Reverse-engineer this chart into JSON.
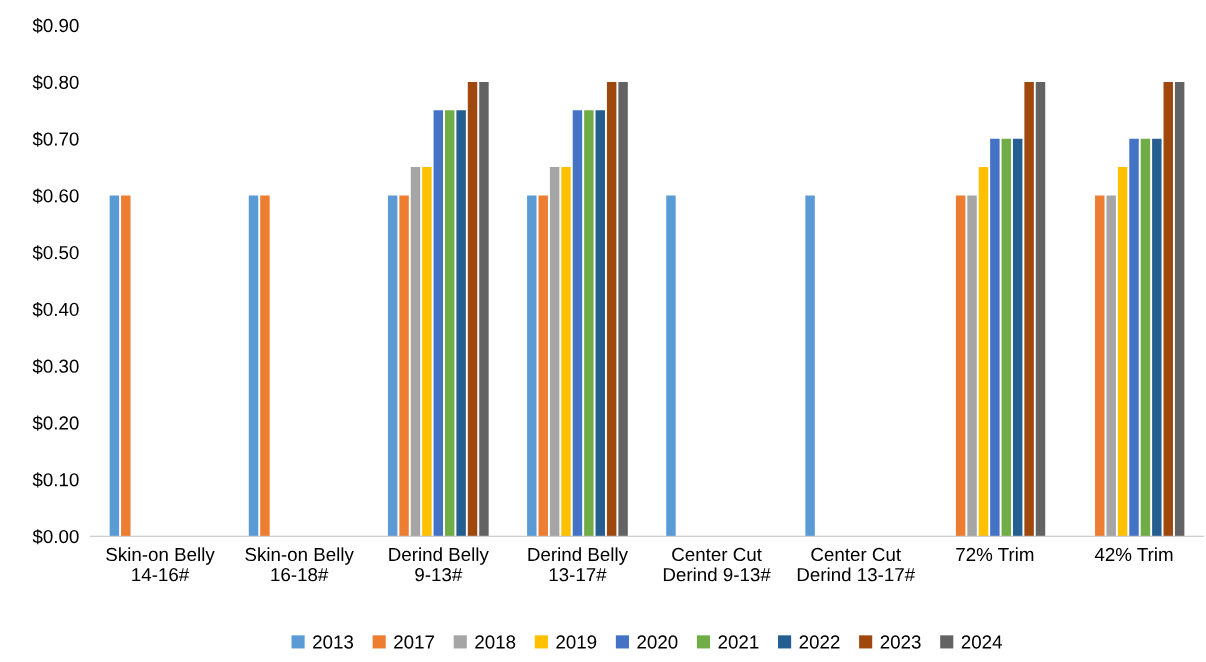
{
  "chart_data": {
    "type": "bar",
    "categories": [
      "Skin-on Belly\n14-16#",
      "Skin-on Belly\n16-18#",
      "Derind Belly\n9-13#",
      "Derind Belly\n13-17#",
      "Center Cut\nDerind 9-13#",
      "Center Cut\nDerind 13-17#",
      "72% Trim",
      "42% Trim"
    ],
    "series": [
      {
        "name": "2013",
        "color": "#5b9bd5",
        "values": [
          0.6,
          0.6,
          0.6,
          0.6,
          0.6,
          0.6,
          null,
          null
        ]
      },
      {
        "name": "2017",
        "color": "#ed7d31",
        "values": [
          0.6,
          0.6,
          0.6,
          0.6,
          null,
          null,
          0.6,
          0.6
        ]
      },
      {
        "name": "2018",
        "color": "#a5a5a5",
        "values": [
          null,
          null,
          0.65,
          0.65,
          null,
          null,
          0.6,
          0.6
        ]
      },
      {
        "name": "2019",
        "color": "#ffc000",
        "values": [
          null,
          null,
          0.65,
          0.65,
          null,
          null,
          0.65,
          0.65
        ]
      },
      {
        "name": "2020",
        "color": "#4472c4",
        "values": [
          null,
          null,
          0.75,
          0.75,
          null,
          null,
          0.7,
          0.7
        ]
      },
      {
        "name": "2021",
        "color": "#70ad47",
        "values": [
          null,
          null,
          0.75,
          0.75,
          null,
          null,
          0.7,
          0.7
        ]
      },
      {
        "name": "2022",
        "color": "#255e91",
        "values": [
          null,
          null,
          0.75,
          0.75,
          null,
          null,
          0.7,
          0.7
        ]
      },
      {
        "name": "2023",
        "color": "#9e480e",
        "values": [
          null,
          null,
          0.8,
          0.8,
          null,
          null,
          0.8,
          0.8
        ]
      },
      {
        "name": "2024",
        "color": "#636363",
        "values": [
          null,
          null,
          0.8,
          0.8,
          null,
          null,
          0.8,
          0.8
        ]
      }
    ],
    "ylim": [
      0,
      0.9
    ],
    "yticks": [
      {
        "value": 0,
        "label": "$0.00"
      },
      {
        "value": 0.1,
        "label": "$0.10"
      },
      {
        "value": 0.2,
        "label": "$0.20"
      },
      {
        "value": 0.3,
        "label": "$0.30"
      },
      {
        "value": 0.4,
        "label": "$0.40"
      },
      {
        "value": 0.5,
        "label": "$0.50"
      },
      {
        "value": 0.6,
        "label": "$0.60"
      },
      {
        "value": 0.7,
        "label": "$0.70"
      },
      {
        "value": 0.8,
        "label": "$0.80"
      },
      {
        "value": 0.9,
        "label": "$0.90"
      }
    ],
    "grid": false,
    "legend": "bottom"
  }
}
